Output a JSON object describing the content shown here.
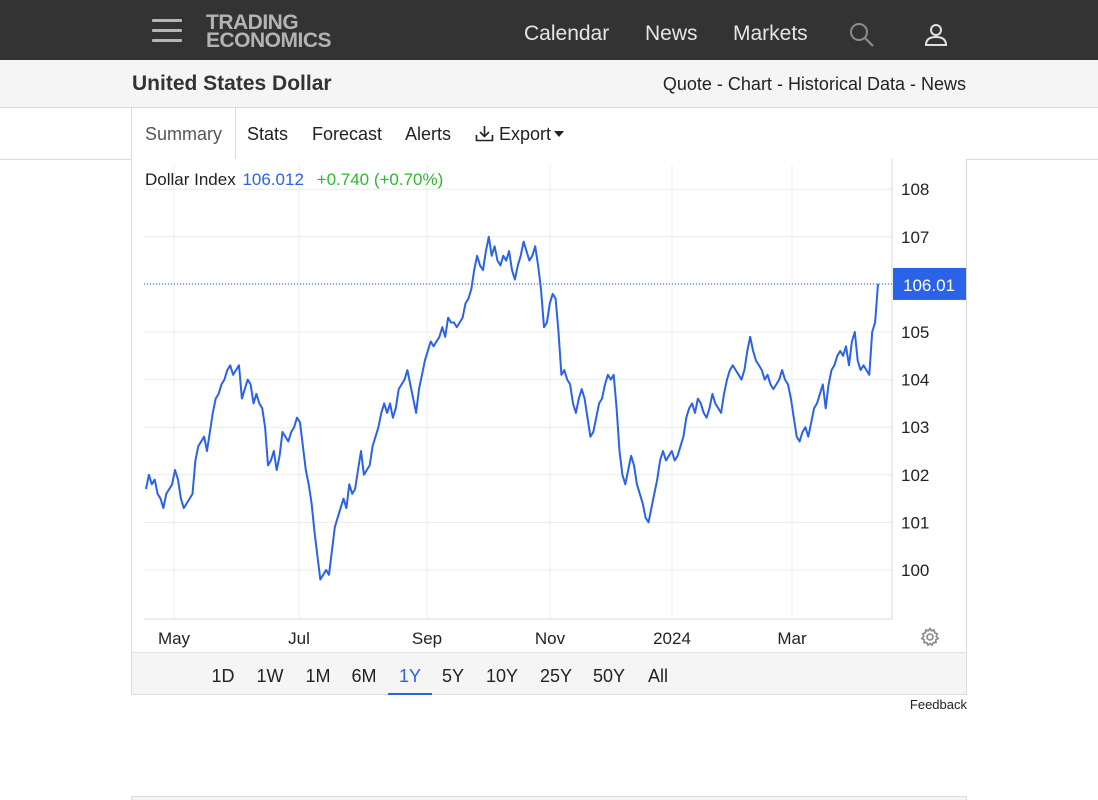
{
  "nav": {
    "logo_line1": "TRADING",
    "logo_line2": "ECONOMICS",
    "links": [
      "Calendar",
      "News",
      "Markets"
    ],
    "icons": [
      "menu-icon",
      "search-icon",
      "user-icon"
    ]
  },
  "header": {
    "title": "United States Dollar",
    "crumbs": [
      "Quote",
      "Chart",
      "Historical Data",
      "News"
    ],
    "separator": " - "
  },
  "tabs": {
    "items": [
      "Summary",
      "Stats",
      "Forecast",
      "Alerts",
      "Export"
    ],
    "active": "Summary",
    "export_icon": "download-icon"
  },
  "quote": {
    "name": "Dollar Index",
    "value": "106.012",
    "change": "+0.740 (+0.70%)",
    "last_label": "106.01"
  },
  "ranges": {
    "items": [
      "1D",
      "1W",
      "1M",
      "6M",
      "1Y",
      "5Y",
      "10Y",
      "25Y",
      "50Y",
      "All"
    ],
    "active": "1Y"
  },
  "feedback": "Feedback",
  "colors": {
    "line": "#2a62e8",
    "positive": "#2eb82e",
    "navbar": "#333333"
  },
  "chart_data": {
    "type": "line",
    "ylim": [
      99,
      108.4
    ],
    "yticks": [
      100,
      101,
      102,
      103,
      104,
      105,
      106,
      107,
      108
    ],
    "xticks": [
      "May",
      "Jul",
      "Sep",
      "Nov",
      "2024",
      "Mar"
    ],
    "last_value": 106.01,
    "grid": true,
    "series": [
      {
        "values": [
          101.7,
          102.0,
          101.8,
          101.9,
          101.6,
          101.5,
          101.3,
          101.6,
          101.7,
          101.8,
          102.1,
          101.9,
          101.5,
          101.3,
          101.4,
          101.5,
          101.6,
          102.3,
          102.6,
          102.7,
          102.8,
          102.5,
          102.9,
          103.3,
          103.6,
          103.7,
          103.9,
          104.0,
          104.2,
          104.3,
          104.1,
          104.2,
          104.3,
          103.6,
          103.8,
          104.0,
          103.9,
          103.5,
          103.7,
          103.5,
          103.4,
          103.0,
          102.2,
          102.3,
          102.5,
          102.1,
          102.4,
          102.9,
          102.8,
          102.7,
          102.9,
          103.0,
          103.2,
          103.1,
          102.6,
          102.1,
          101.8,
          101.4,
          100.8,
          100.3,
          99.8,
          99.9,
          100.0,
          99.9,
          100.4,
          100.9,
          101.1,
          101.3,
          101.5,
          101.3,
          101.8,
          101.6,
          101.7,
          102.1,
          102.5,
          102.0,
          102.1,
          102.2,
          102.6,
          102.8,
          103.0,
          103.3,
          103.5,
          103.3,
          103.5,
          103.2,
          103.4,
          103.8,
          103.9,
          104.0,
          104.2,
          103.9,
          103.6,
          103.3,
          103.8,
          104.1,
          104.4,
          104.6,
          104.8,
          104.7,
          104.8,
          104.9,
          105.1,
          104.9,
          105.3,
          105.2,
          105.2,
          105.1,
          105.2,
          105.3,
          105.6,
          105.7,
          105.9,
          106.3,
          106.6,
          106.4,
          106.3,
          106.7,
          107.0,
          106.6,
          106.8,
          106.5,
          106.4,
          106.6,
          106.5,
          106.7,
          106.3,
          106.1,
          106.4,
          106.6,
          106.9,
          106.7,
          106.5,
          106.6,
          106.8,
          106.4,
          105.9,
          105.1,
          105.2,
          105.6,
          105.8,
          105.7,
          105.0,
          104.1,
          104.2,
          104.0,
          103.9,
          103.5,
          103.3,
          103.6,
          103.8,
          103.6,
          103.2,
          102.8,
          102.9,
          103.2,
          103.5,
          103.6,
          103.9,
          104.1,
          104.0,
          104.1,
          103.4,
          102.5,
          102.0,
          101.8,
          102.1,
          102.4,
          102.2,
          101.8,
          101.6,
          101.4,
          101.1,
          101.0,
          101.3,
          101.6,
          101.9,
          102.3,
          102.5,
          102.3,
          102.4,
          102.5,
          102.3,
          102.4,
          102.6,
          102.8,
          103.2,
          103.4,
          103.5,
          103.3,
          103.6,
          103.5,
          103.3,
          103.2,
          103.4,
          103.7,
          103.5,
          103.4,
          103.3,
          103.7,
          104.0,
          104.2,
          104.3,
          104.2,
          104.1,
          104.0,
          104.2,
          104.6,
          104.9,
          104.6,
          104.4,
          104.3,
          104.2,
          104.0,
          104.1,
          103.9,
          103.8,
          103.9,
          104.0,
          104.2,
          104.0,
          103.9,
          103.6,
          103.2,
          102.8,
          102.7,
          102.9,
          103.0,
          102.8,
          103.1,
          103.4,
          103.5,
          103.7,
          103.9,
          103.4,
          103.9,
          104.2,
          104.3,
          104.5,
          104.6,
          104.5,
          104.7,
          104.3,
          104.8,
          105.0,
          104.4,
          104.2,
          104.3,
          104.2,
          104.1,
          105.0,
          105.2,
          106.01
        ]
      }
    ]
  }
}
